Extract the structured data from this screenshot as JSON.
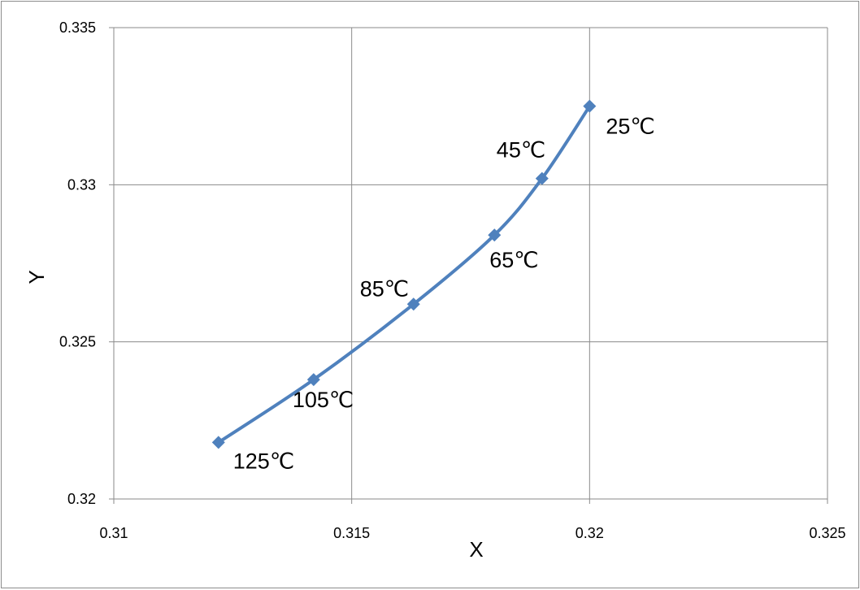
{
  "chart_data": {
    "type": "scatter",
    "xlabel": "X",
    "ylabel": "Y",
    "xlim": [
      0.31,
      0.325
    ],
    "ylim": [
      0.32,
      0.335
    ],
    "x_ticks": [
      "0.31",
      "0.315",
      "0.32",
      "0.325"
    ],
    "y_ticks": [
      "0.32",
      "0.325",
      "0.33",
      "0.335"
    ],
    "grid": true,
    "legend": "none",
    "series": [
      {
        "color": "#4f81bd",
        "marker": "diamond",
        "line": "smooth",
        "x": [
          0.3122,
          0.3142,
          0.3163,
          0.318,
          0.319,
          0.32
        ],
        "y": [
          0.3218,
          0.3238,
          0.3262,
          0.3284,
          0.3302,
          0.3325
        ],
        "point_labels": [
          "125℃",
          "105℃",
          "85℃",
          "65℃",
          "45℃",
          "25℃"
        ]
      }
    ]
  }
}
